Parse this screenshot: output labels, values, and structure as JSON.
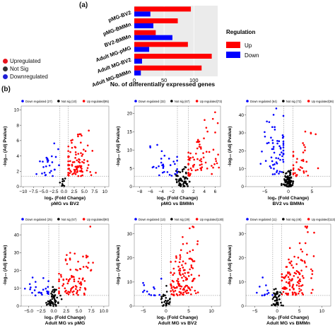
{
  "panel_a_label": "(a)",
  "panel_b_label": "(b)",
  "left_legend": [
    {
      "label": "Upregulated",
      "color": "#e8141c"
    },
    {
      "label": "Not Sig",
      "color": "#333333"
    },
    {
      "label": "Downregulated",
      "color": "#1f1fd6"
    }
  ],
  "colors": {
    "up": "#ff0000",
    "down": "#0000ff",
    "nonsig": "#000000",
    "panel_bg": "#ebebeb"
  },
  "chart_data": [
    {
      "type": "bar",
      "orientation": "horizontal",
      "categories": [
        "pMG-BV2",
        "pMG-BMMn",
        "BV2-BMMn",
        "Adult MG-pMG",
        "Adult MG-BV2",
        "Adult MG-BMMn"
      ],
      "series": [
        {
          "name": "Up",
          "color": "#ff0000",
          "values": [
            95,
            73,
            36,
            90,
            130,
            113
          ]
        },
        {
          "name": "Down",
          "color": "#0000ff",
          "values": [
            27,
            32,
            64,
            25,
            13,
            11
          ]
        }
      ],
      "xlabel": "No. of differentially expressed genes",
      "xticks": [
        0,
        50,
        100
      ],
      "xlim": [
        0,
        140
      ],
      "legend_title": "Regulation",
      "legend_position": "right"
    },
    {
      "type": "scatter",
      "xlabel": "log₂ (Fold Change)",
      "ylabel": "-log₁₀ (Adj Pvalue)",
      "subtitle": "pMG vs BV2",
      "legend": {
        "down": "Down regulated (27)",
        "ns": "Not sig (10)",
        "up": "Up regulated(95)"
      },
      "xticks": [
        -10,
        -7.5,
        -5,
        -2.5,
        0,
        2.5,
        5,
        7.5,
        10
      ],
      "xtick_labels": [
        "−10",
        "−7.5",
        "−5.0",
        "−2.5",
        "0.0",
        "2.5",
        "5.0",
        "7.5",
        "10"
      ],
      "yticks": [
        0,
        2,
        4,
        6,
        8,
        10
      ],
      "xlim": [
        -10.5,
        11
      ],
      "ylim": [
        0,
        10.5
      ],
      "n_up": 95,
      "n_down": 27,
      "n_ns": 10,
      "up_center": [
        3.5,
        3.5
      ],
      "down_center": [
        -3.5,
        2.5
      ]
    },
    {
      "type": "scatter",
      "xlabel": "log₂ (Fold Change)",
      "ylabel": "-log₁₀ (Adj Pvalue)",
      "subtitle": "pMG vs BMMn",
      "legend": {
        "down": "Down regulated (32)",
        "ns": "Not sig (67)",
        "up": "Up regulated(73)"
      },
      "xticks": [
        -8,
        -6,
        -4,
        -2,
        0,
        2,
        4,
        6
      ],
      "xtick_labels": [
        "−8",
        "−6",
        "−4",
        "−2",
        "0",
        "2",
        "4",
        "6"
      ],
      "yticks": [
        0,
        5,
        10,
        15,
        20
      ],
      "xlim": [
        -9,
        7
      ],
      "ylim": [
        0,
        22
      ],
      "n_up": 73,
      "n_down": 32,
      "n_ns": 67,
      "up_center": [
        3,
        9
      ],
      "down_center": [
        -3,
        7
      ]
    },
    {
      "type": "scatter",
      "xlabel": "log₂ (Fold Change)",
      "ylabel": "-log₁₀ (Adj Pvalue)",
      "subtitle": "BV2 vs BMMn",
      "legend": {
        "down": "Down regulated (64)",
        "ns": "Not sig (72)",
        "up": "Up regulated(36)"
      },
      "xticks": [
        -5,
        0,
        5
      ],
      "xtick_labels": [
        "−5",
        "0",
        "5"
      ],
      "yticks": [
        0,
        10,
        20,
        30,
        40
      ],
      "xlim": [
        -9,
        9
      ],
      "ylim": [
        0,
        45
      ],
      "n_up": 36,
      "n_down": 64,
      "n_ns": 72,
      "up_center": [
        3,
        15
      ],
      "down_center": [
        -2.5,
        20
      ]
    },
    {
      "type": "scatter",
      "xlabel": "log₂ (Fold Change)",
      "ylabel": "-log₁₀ (Adj Pvalue)",
      "subtitle": "Adult MG vs pMG",
      "legend": {
        "down": "Down regulated (25)",
        "ns": "Not sig (57)",
        "up": "Up regulated(90)"
      },
      "xticks": [
        -5,
        -2.5,
        0,
        2.5,
        5,
        7.5,
        10
      ],
      "xtick_labels": [
        "−5.0",
        "−2.5",
        "0.0",
        "2.5",
        "5.0",
        "7.5",
        "10.0"
      ],
      "yticks": [
        0,
        10,
        20,
        30,
        40
      ],
      "xlim": [
        -6.5,
        11
      ],
      "ylim": [
        0,
        46
      ],
      "n_up": 90,
      "n_down": 25,
      "n_ns": 57,
      "up_center": [
        4,
        15
      ],
      "down_center": [
        -2.5,
        8
      ]
    },
    {
      "type": "scatter",
      "xlabel": "log₂ (Fold Change)",
      "ylabel": "-log₁₀ (Adj Pvalue)",
      "subtitle": "Adult MG vs BV2",
      "legend": {
        "down": "Down regulated (13)",
        "ns": "Not sig (29)",
        "up": "Up regulated(130)"
      },
      "xticks": [
        -5,
        0,
        5,
        10
      ],
      "xtick_labels": [
        "−5",
        "0",
        "5",
        "10"
      ],
      "yticks": [
        0,
        10,
        20,
        30
      ],
      "xlim": [
        -7,
        12
      ],
      "ylim": [
        0,
        34
      ],
      "n_up": 130,
      "n_down": 13,
      "n_ns": 29,
      "up_center": [
        4,
        12
      ],
      "down_center": [
        -3,
        6
      ]
    },
    {
      "type": "scatter",
      "xlabel": "log₂ (Fold Change)",
      "ylabel": "-log₁₀ (Adj Pvalue)",
      "subtitle": "Adult MG vs BMMn",
      "legend": {
        "down": "Down regulated (11)",
        "ns": "Not sig (48)",
        "up": "Up regulated(113)"
      },
      "xticks": [
        -5,
        0,
        5,
        10
      ],
      "xtick_labels": [
        "−5",
        "0",
        "5",
        "10"
      ],
      "yticks": [
        0,
        10,
        20,
        30
      ],
      "xlim": [
        -7,
        12
      ],
      "ylim": [
        0,
        34
      ],
      "n_up": 113,
      "n_down": 11,
      "n_ns": 48,
      "up_center": [
        4,
        12
      ],
      "down_center": [
        -2.5,
        6
      ]
    }
  ]
}
